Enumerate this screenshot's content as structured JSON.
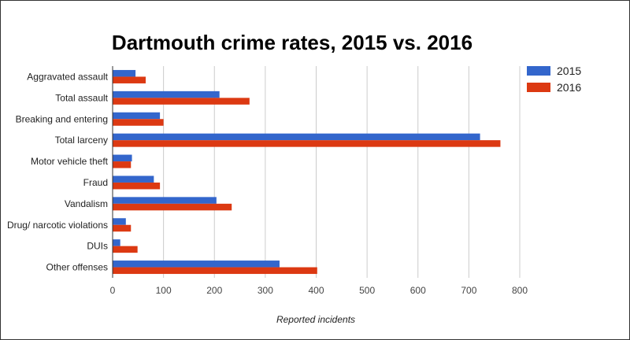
{
  "chart_data": {
    "type": "bar",
    "orientation": "horizontal",
    "title": "Dartmouth crime rates, 2015 vs. 2016",
    "xlabel": "Reported incidents",
    "ylabel": "",
    "categories": [
      "Aggravated assault",
      "Total assault",
      "Breaking and entering",
      "Total larceny",
      "Motor vehicle theft",
      "Fraud",
      "Vandalism",
      "Drug/ narcotic violations",
      "DUIs",
      "Other offenses"
    ],
    "series": [
      {
        "name": "2015",
        "color": "#3366cc",
        "values": [
          45,
          210,
          93,
          722,
          38,
          81,
          204,
          26,
          15,
          328
        ]
      },
      {
        "name": "2016",
        "color": "#dc3912",
        "values": [
          65,
          269,
          100,
          762,
          36,
          93,
          234,
          36,
          49,
          402
        ]
      }
    ],
    "xlim": [
      0,
      800
    ],
    "xticks": [
      "0",
      "100",
      "200",
      "300",
      "400",
      "500",
      "600",
      "700",
      "800"
    ],
    "grid": true,
    "legend_position": "right"
  }
}
